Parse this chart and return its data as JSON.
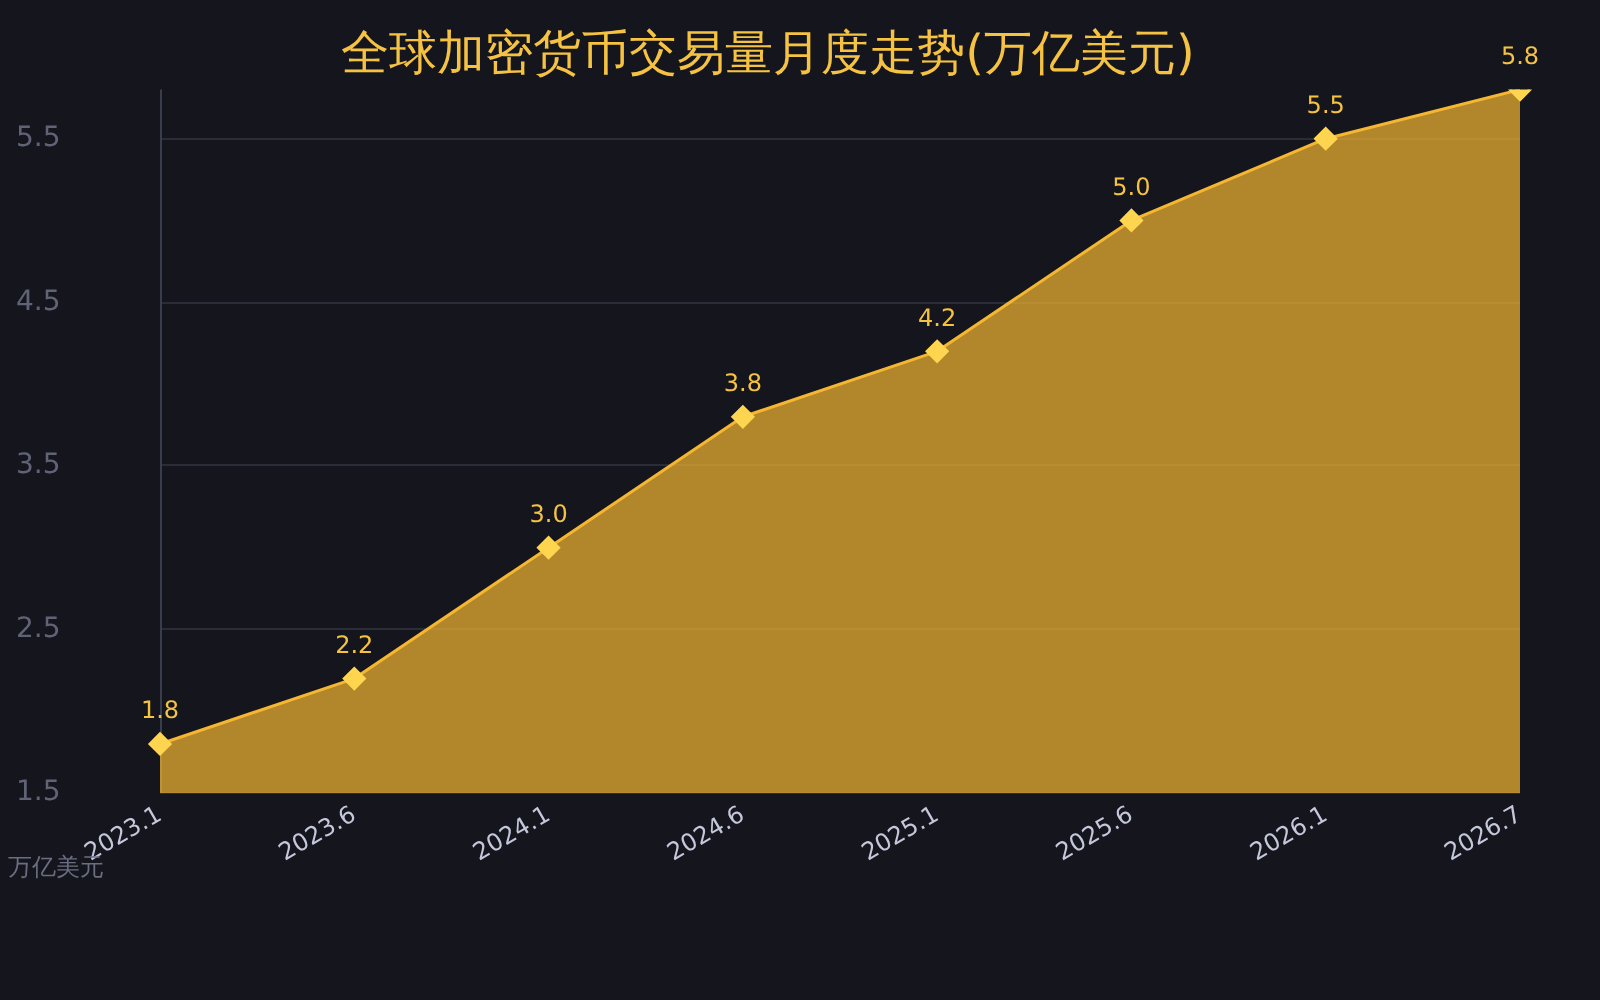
{
  "chart_data": {
    "type": "area",
    "title": "全球加密货币交易量月度走势(万亿美元)",
    "ylabel": "万亿美元",
    "categories": [
      "2023.1",
      "2023.6",
      "2024.1",
      "2024.6",
      "2025.1",
      "2025.6",
      "2026.1",
      "2026.7"
    ],
    "values": [
      1.8,
      2.2,
      3.0,
      3.8,
      4.2,
      5.0,
      5.5,
      5.8
    ],
    "color": "#f5b731",
    "value_labels": [
      "1.8",
      "2.2",
      "3.0",
      "3.8",
      "4.2",
      "5.0",
      "5.5",
      "5.8"
    ],
    "ylim": [
      1.5,
      5.8
    ],
    "yticks": [
      1.5,
      2.5,
      3.5,
      4.5,
      5.5
    ],
    "grid": "y",
    "legend": false,
    "marker": "diamond"
  }
}
